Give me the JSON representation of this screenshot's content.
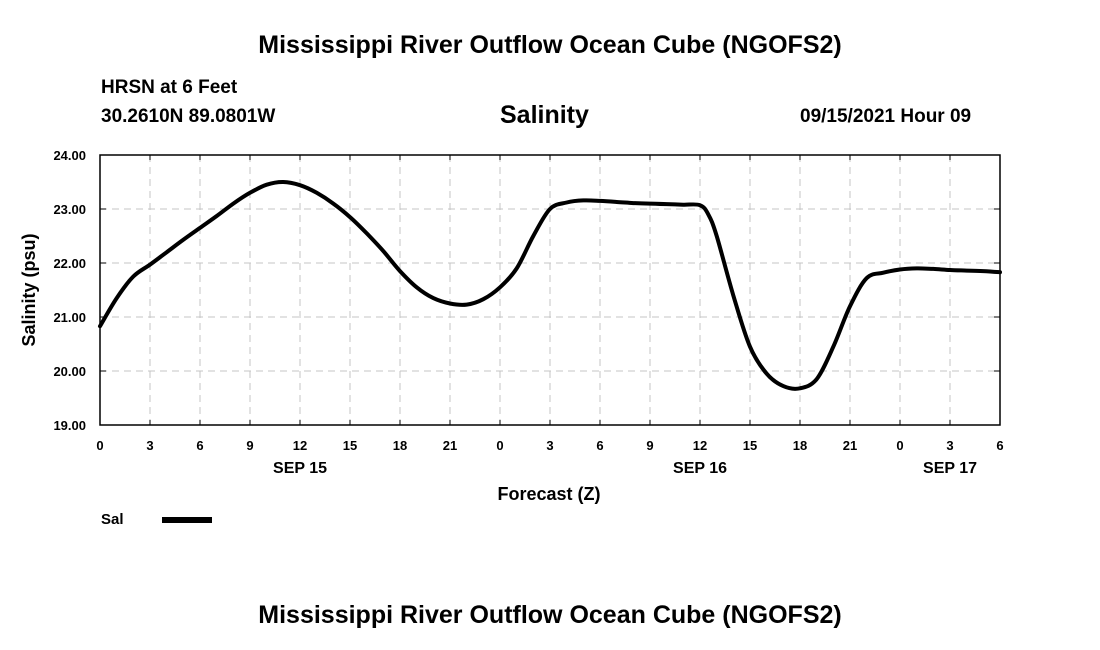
{
  "header": {
    "title": "Mississippi River Outflow Ocean Cube (NGOFS2)",
    "station": "HRSN at 6 Feet",
    "coords": "30.2610N  89.0801W",
    "variable": "Salinity",
    "datetime": "09/15/2021 Hour 09"
  },
  "footer": {
    "title": "Mississippi River Outflow Ocean Cube (NGOFS2)"
  },
  "chart_data": {
    "type": "line",
    "title": "Salinity",
    "xlabel": "Forecast (Z)",
    "ylabel": "Salinity (psu)",
    "xlim": [
      0,
      54
    ],
    "ylim": [
      19,
      24
    ],
    "grid": true,
    "x_tick_values": [
      0,
      3,
      6,
      9,
      12,
      15,
      18,
      21,
      24,
      27,
      30,
      33,
      36,
      39,
      42,
      45,
      48,
      51,
      54
    ],
    "x_tick_labels": [
      "0",
      "3",
      "6",
      "9",
      "12",
      "15",
      "18",
      "21",
      "0",
      "3",
      "6",
      "9",
      "12",
      "15",
      "18",
      "21",
      "0",
      "3",
      "6"
    ],
    "y_tick_values": [
      19,
      20,
      21,
      22,
      23,
      24
    ],
    "y_tick_labels": [
      "19.00",
      "20.00",
      "21.00",
      "22.00",
      "23.00",
      "24.00"
    ],
    "day_labels": [
      {
        "x": 12,
        "label": "SEP 15"
      },
      {
        "x": 36,
        "label": "SEP 16"
      },
      {
        "x": 51,
        "label": "SEP 17"
      }
    ],
    "legend": {
      "label": "Sal",
      "placement": "bottom-left"
    },
    "series": [
      {
        "name": "Sal",
        "x": [
          0,
          1,
          2,
          3,
          4,
          5,
          6,
          7,
          8,
          9,
          10,
          11,
          12,
          13,
          14,
          15,
          16,
          17,
          18,
          19,
          20,
          21,
          22,
          23,
          24,
          25,
          26,
          27,
          28,
          29,
          30,
          31,
          32,
          33,
          34,
          35,
          36,
          36.5,
          37,
          38,
          39,
          40,
          41,
          42,
          43,
          44,
          45,
          46,
          47,
          48,
          49,
          50,
          51,
          52,
          53,
          54
        ],
        "values": [
          20.83,
          21.35,
          21.75,
          21.97,
          22.2,
          22.43,
          22.65,
          22.87,
          23.1,
          23.3,
          23.45,
          23.5,
          23.44,
          23.3,
          23.1,
          22.85,
          22.55,
          22.22,
          21.85,
          21.55,
          21.35,
          21.25,
          21.23,
          21.33,
          21.55,
          21.9,
          22.5,
          23.0,
          23.12,
          23.16,
          23.15,
          23.13,
          23.11,
          23.1,
          23.09,
          23.08,
          23.07,
          22.9,
          22.5,
          21.4,
          20.45,
          19.95,
          19.72,
          19.68,
          19.85,
          20.45,
          21.2,
          21.72,
          21.82,
          21.88,
          21.9,
          21.89,
          21.87,
          21.86,
          21.85,
          21.83
        ]
      }
    ]
  }
}
